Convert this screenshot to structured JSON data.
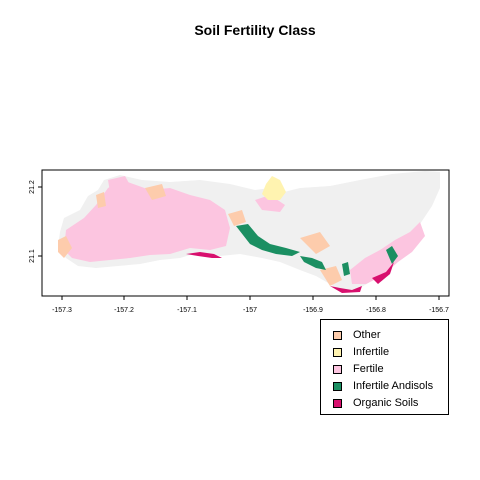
{
  "title": "Soil Fertility Class",
  "axes": {
    "x_ticks": [
      "-157.3",
      "-157.2",
      "-157.1",
      "-157",
      "-156.9",
      "-156.8",
      "-156.7"
    ],
    "y_ticks": [
      "21.1",
      "21.2"
    ]
  },
  "legend": {
    "items": [
      {
        "label": "Other",
        "color": "#FDCCAC"
      },
      {
        "label": "Infertile",
        "color": "#FFF3B0"
      },
      {
        "label": "Fertile",
        "color": "#FCC5E0"
      },
      {
        "label": "Infertile Andisols",
        "color": "#1B8F62"
      },
      {
        "label": "Organic Soils",
        "color": "#D8106E"
      }
    ]
  },
  "colors": {
    "island_base": "#F0F0F0",
    "other": "#FDCCAC",
    "infertile": "#FFF3B0",
    "fertile": "#FCC5E0",
    "infertile_andisols": "#1B8F62",
    "organic_soils": "#D8106E"
  }
}
